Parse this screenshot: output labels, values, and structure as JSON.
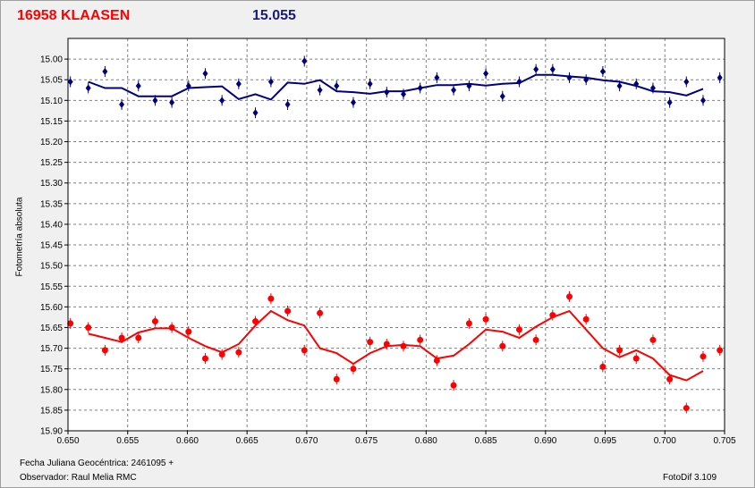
{
  "header": {
    "object_name": "16958 KLAASEN",
    "mean_magnitude": "15.055"
  },
  "footer": {
    "julian_date": "Fecha Juliana Geocéntrica: 2461095 +",
    "observer": "Observador: Raul Melia RMC",
    "software": "FotoDif 3.109"
  },
  "colors": {
    "comparison": "#000080",
    "target": "#ff0000",
    "grid": "#808080",
    "plot_bg": "#ffffff"
  },
  "chart_data": {
    "type": "scatter",
    "ylabel": "Fotometría absoluta",
    "xlabel": "Fecha Juliana Geocéntrica: 2461095 +",
    "xlim": [
      0.65,
      0.705
    ],
    "ylim": [
      15.9,
      14.95
    ],
    "y_inverted": true,
    "grid": true,
    "x_ticks": [
      "0.650",
      "0.655",
      "0.660",
      "0.665",
      "0.670",
      "0.675",
      "0.680",
      "0.685",
      "0.690",
      "0.695",
      "0.700",
      "0.705"
    ],
    "y_ticks": [
      "15.00",
      "15.05",
      "15.10",
      "15.15",
      "15.20",
      "15.25",
      "15.30",
      "15.35",
      "15.40",
      "15.45",
      "15.50",
      "15.55",
      "15.60",
      "15.65",
      "15.70",
      "15.75",
      "15.80",
      "15.85",
      "15.90"
    ],
    "series": [
      {
        "color": "#000080",
        "marker": "diamond",
        "points": [
          [
            0.6502,
            15.055
          ],
          [
            0.6517,
            15.07
          ],
          [
            0.6531,
            15.03
          ],
          [
            0.6545,
            15.11
          ],
          [
            0.6559,
            15.065
          ],
          [
            0.6573,
            15.1
          ],
          [
            0.6587,
            15.105
          ],
          [
            0.6601,
            15.065
          ],
          [
            0.6615,
            15.035
          ],
          [
            0.6629,
            15.1
          ],
          [
            0.6643,
            15.06
          ],
          [
            0.6657,
            15.13
          ],
          [
            0.667,
            15.055
          ],
          [
            0.6684,
            15.11
          ],
          [
            0.6698,
            15.005
          ],
          [
            0.6711,
            15.075
          ],
          [
            0.6725,
            15.065
          ],
          [
            0.6739,
            15.105
          ],
          [
            0.6753,
            15.06
          ],
          [
            0.6767,
            15.08
          ],
          [
            0.6781,
            15.085
          ],
          [
            0.6795,
            15.07
          ],
          [
            0.6809,
            15.045
          ],
          [
            0.6823,
            15.075
          ],
          [
            0.6836,
            15.065
          ],
          [
            0.685,
            15.035
          ],
          [
            0.6864,
            15.09
          ],
          [
            0.6878,
            15.055
          ],
          [
            0.6892,
            15.025
          ],
          [
            0.6906,
            15.025
          ],
          [
            0.692,
            15.045
          ],
          [
            0.6934,
            15.05
          ],
          [
            0.6948,
            15.03
          ],
          [
            0.6962,
            15.065
          ],
          [
            0.6976,
            15.06
          ],
          [
            0.699,
            15.07
          ],
          [
            0.7004,
            15.105
          ],
          [
            0.7018,
            15.055
          ],
          [
            0.7032,
            15.1
          ],
          [
            0.7046,
            15.045
          ]
        ],
        "fit": [
          [
            0.6517,
            15.055
          ],
          [
            0.6531,
            15.07
          ],
          [
            0.6545,
            15.07
          ],
          [
            0.6559,
            15.09
          ],
          [
            0.6573,
            15.09
          ],
          [
            0.6587,
            15.09
          ],
          [
            0.6601,
            15.07
          ],
          [
            0.6615,
            15.068
          ],
          [
            0.6629,
            15.066
          ],
          [
            0.6643,
            15.097
          ],
          [
            0.6657,
            15.085
          ],
          [
            0.667,
            15.098
          ],
          [
            0.6684,
            15.057
          ],
          [
            0.6698,
            15.06
          ],
          [
            0.6711,
            15.051
          ],
          [
            0.6725,
            15.078
          ],
          [
            0.6739,
            15.08
          ],
          [
            0.6753,
            15.084
          ],
          [
            0.6767,
            15.078
          ],
          [
            0.6781,
            15.078
          ],
          [
            0.6795,
            15.07
          ],
          [
            0.6809,
            15.063
          ],
          [
            0.6823,
            15.063
          ],
          [
            0.6836,
            15.06
          ],
          [
            0.685,
            15.064
          ],
          [
            0.6864,
            15.06
          ],
          [
            0.6878,
            15.058
          ],
          [
            0.6892,
            15.038
          ],
          [
            0.6906,
            15.038
          ],
          [
            0.692,
            15.042
          ],
          [
            0.6934,
            15.045
          ],
          [
            0.6948,
            15.051
          ],
          [
            0.6962,
            15.055
          ],
          [
            0.6976,
            15.065
          ],
          [
            0.699,
            15.078
          ],
          [
            0.7004,
            15.08
          ],
          [
            0.7018,
            15.088
          ],
          [
            0.7032,
            15.072
          ]
        ]
      },
      {
        "color": "#ff0000",
        "marker": "circle",
        "points": [
          [
            0.6502,
            15.64
          ],
          [
            0.6517,
            15.65
          ],
          [
            0.6531,
            15.705
          ],
          [
            0.6545,
            15.675
          ],
          [
            0.6559,
            15.675
          ],
          [
            0.6573,
            15.635
          ],
          [
            0.6587,
            15.65
          ],
          [
            0.6601,
            15.66
          ],
          [
            0.6615,
            15.725
          ],
          [
            0.6629,
            15.715
          ],
          [
            0.6643,
            15.71
          ],
          [
            0.6657,
            15.635
          ],
          [
            0.667,
            15.58
          ],
          [
            0.6684,
            15.61
          ],
          [
            0.6698,
            15.705
          ],
          [
            0.6711,
            15.615
          ],
          [
            0.6725,
            15.775
          ],
          [
            0.6739,
            15.75
          ],
          [
            0.6753,
            15.685
          ],
          [
            0.6767,
            15.69
          ],
          [
            0.6781,
            15.695
          ],
          [
            0.6795,
            15.68
          ],
          [
            0.6809,
            15.73
          ],
          [
            0.6823,
            15.79
          ],
          [
            0.6836,
            15.64
          ],
          [
            0.685,
            15.63
          ],
          [
            0.6864,
            15.695
          ],
          [
            0.6878,
            15.655
          ],
          [
            0.6892,
            15.68
          ],
          [
            0.6906,
            15.62
          ],
          [
            0.692,
            15.575
          ],
          [
            0.6934,
            15.63
          ],
          [
            0.6948,
            15.745
          ],
          [
            0.6962,
            15.705
          ],
          [
            0.6976,
            15.725
          ],
          [
            0.699,
            15.68
          ],
          [
            0.7004,
            15.775
          ],
          [
            0.7018,
            15.845
          ],
          [
            0.7032,
            15.72
          ],
          [
            0.7046,
            15.705
          ]
        ],
        "fit": [
          [
            0.6517,
            15.665
          ],
          [
            0.6531,
            15.675
          ],
          [
            0.6545,
            15.685
          ],
          [
            0.6559,
            15.662
          ],
          [
            0.6573,
            15.652
          ],
          [
            0.6587,
            15.652
          ],
          [
            0.6601,
            15.675
          ],
          [
            0.6615,
            15.695
          ],
          [
            0.6629,
            15.71
          ],
          [
            0.6643,
            15.69
          ],
          [
            0.6657,
            15.645
          ],
          [
            0.667,
            15.61
          ],
          [
            0.6684,
            15.632
          ],
          [
            0.6698,
            15.645
          ],
          [
            0.6711,
            15.7
          ],
          [
            0.6725,
            15.712
          ],
          [
            0.6739,
            15.738
          ],
          [
            0.6753,
            15.712
          ],
          [
            0.6767,
            15.695
          ],
          [
            0.6781,
            15.692
          ],
          [
            0.6795,
            15.695
          ],
          [
            0.6809,
            15.725
          ],
          [
            0.6823,
            15.718
          ],
          [
            0.6836,
            15.69
          ],
          [
            0.685,
            15.655
          ],
          [
            0.6864,
            15.66
          ],
          [
            0.6878,
            15.675
          ],
          [
            0.6892,
            15.648
          ],
          [
            0.6906,
            15.625
          ],
          [
            0.692,
            15.61
          ],
          [
            0.6934,
            15.655
          ],
          [
            0.6948,
            15.7
          ],
          [
            0.6962,
            15.722
          ],
          [
            0.6976,
            15.705
          ],
          [
            0.699,
            15.725
          ],
          [
            0.7004,
            15.765
          ],
          [
            0.7018,
            15.778
          ],
          [
            0.7032,
            15.755
          ]
        ]
      }
    ]
  }
}
